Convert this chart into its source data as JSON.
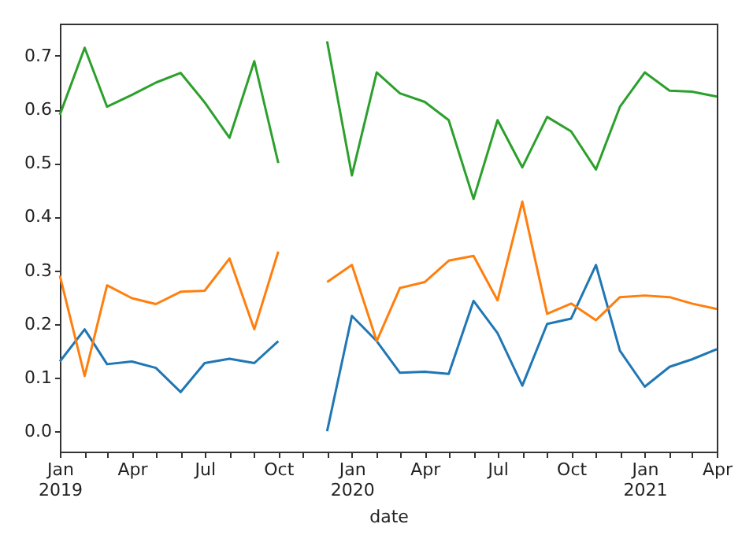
{
  "chart_data": {
    "type": "line",
    "xlabel": "date",
    "x": [
      "2019-01",
      "2019-02",
      "2019-03",
      "2019-04",
      "2019-05",
      "2019-06",
      "2019-07",
      "2019-08",
      "2019-09",
      "2019-10",
      "2019-11",
      "2019-12",
      "2020-01",
      "2020-02",
      "2020-03",
      "2020-04",
      "2020-05",
      "2020-06",
      "2020-07",
      "2020-08",
      "2020-09",
      "2020-10",
      "2020-11",
      "2020-12",
      "2021-01",
      "2021-02",
      "2021-03",
      "2021-04"
    ],
    "series": [
      {
        "color": "#1f77b4",
        "values": [
          0.13,
          0.19,
          0.125,
          0.13,
          0.118,
          0.073,
          0.127,
          0.135,
          0.127,
          0.168,
          null,
          0.0,
          0.215,
          0.168,
          0.109,
          0.111,
          0.107,
          0.243,
          0.183,
          0.085,
          0.2,
          0.21,
          0.31,
          0.15,
          0.083,
          0.12,
          0.134,
          0.153
        ]
      },
      {
        "color": "#ff7f0e",
        "values": [
          0.29,
          0.103,
          0.272,
          0.248,
          0.237,
          0.26,
          0.262,
          0.322,
          0.19,
          0.335,
          null,
          0.278,
          0.31,
          0.168,
          0.267,
          0.278,
          0.318,
          0.327,
          0.244,
          0.428,
          0.219,
          0.238,
          0.207,
          0.25,
          0.253,
          0.25,
          0.238,
          0.228
        ]
      },
      {
        "color": "#2ca02c",
        "values": [
          0.59,
          0.715,
          0.605,
          0.627,
          0.65,
          0.668,
          0.613,
          0.547,
          0.69,
          0.5,
          null,
          0.727,
          0.477,
          0.669,
          0.63,
          0.614,
          0.58,
          0.433,
          0.58,
          0.492,
          0.586,
          0.559,
          0.488,
          0.605,
          0.669,
          0.635,
          0.633,
          0.624
        ]
      }
    ],
    "xlim": [
      "2019-01",
      "2021-04"
    ],
    "xticks": [
      {
        "value": "2019-01",
        "label": "Jan 2019"
      },
      {
        "value": "2019-02",
        "label": null
      },
      {
        "value": "2019-03",
        "label": null
      },
      {
        "value": "2019-04",
        "label": "Apr"
      },
      {
        "value": "2019-05",
        "label": null
      },
      {
        "value": "2019-06",
        "label": null
      },
      {
        "value": "2019-07",
        "label": "Jul"
      },
      {
        "value": "2019-08",
        "label": null
      },
      {
        "value": "2019-09",
        "label": null
      },
      {
        "value": "2019-10",
        "label": "Oct"
      },
      {
        "value": "2019-11",
        "label": null
      },
      {
        "value": "2019-12",
        "label": null
      },
      {
        "value": "2020-01",
        "label": "Jan 2020"
      },
      {
        "value": "2020-02",
        "label": null
      },
      {
        "value": "2020-03",
        "label": null
      },
      {
        "value": "2020-04",
        "label": "Apr"
      },
      {
        "value": "2020-05",
        "label": null
      },
      {
        "value": "2020-06",
        "label": null
      },
      {
        "value": "2020-07",
        "label": "Jul"
      },
      {
        "value": "2020-08",
        "label": null
      },
      {
        "value": "2020-09",
        "label": null
      },
      {
        "value": "2020-10",
        "label": "Oct"
      },
      {
        "value": "2020-11",
        "label": null
      },
      {
        "value": "2020-12",
        "label": null
      },
      {
        "value": "2021-01",
        "label": "Jan 2021"
      },
      {
        "value": "2021-02",
        "label": null
      },
      {
        "value": "2021-03",
        "label": null
      },
      {
        "value": "2021-04",
        "label": "Apr"
      }
    ],
    "ylim": [
      -0.038,
      0.76
    ],
    "yticks": [
      {
        "value": 0,
        "label": "0.0"
      },
      {
        "value": 0.1,
        "label": "0.1"
      },
      {
        "value": 0.2,
        "label": "0.2"
      },
      {
        "value": 0.3,
        "label": "0.3"
      },
      {
        "value": 0.4,
        "label": "0.4"
      },
      {
        "value": 0.5,
        "label": "0.5"
      },
      {
        "value": 0.6,
        "label": "0.6"
      },
      {
        "value": 0.7,
        "label": "0.7"
      }
    ],
    "grid": false,
    "line_style": "solid"
  }
}
